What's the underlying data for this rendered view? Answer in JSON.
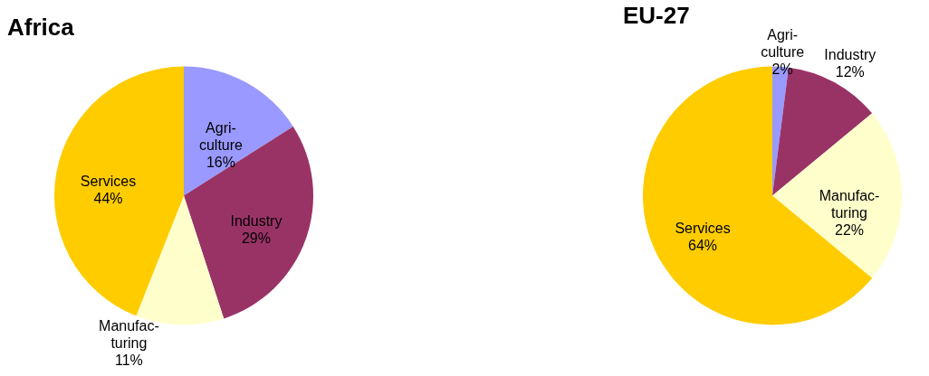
{
  "chart_data": [
    {
      "type": "pie",
      "title": "Africa",
      "categories": [
        "Agri-culture",
        "Industry",
        "Manufac-turing",
        "Services"
      ],
      "values": [
        16,
        29,
        11,
        44
      ],
      "colors": [
        "#9999ff",
        "#993366",
        "#ffffcc",
        "#ffcc00"
      ],
      "value_labels": [
        "16%",
        "29%",
        "11%",
        "44%"
      ],
      "legend": false
    },
    {
      "type": "pie",
      "title": "EU-27",
      "categories": [
        "Agri-culture",
        "Industry",
        "Manufac-turing",
        "Services"
      ],
      "values": [
        2,
        12,
        22,
        64
      ],
      "colors": [
        "#9999ff",
        "#993366",
        "#ffffcc",
        "#ffcc00"
      ],
      "value_labels": [
        "2%",
        "12%",
        "22%",
        "64%"
      ],
      "legend": false
    }
  ]
}
